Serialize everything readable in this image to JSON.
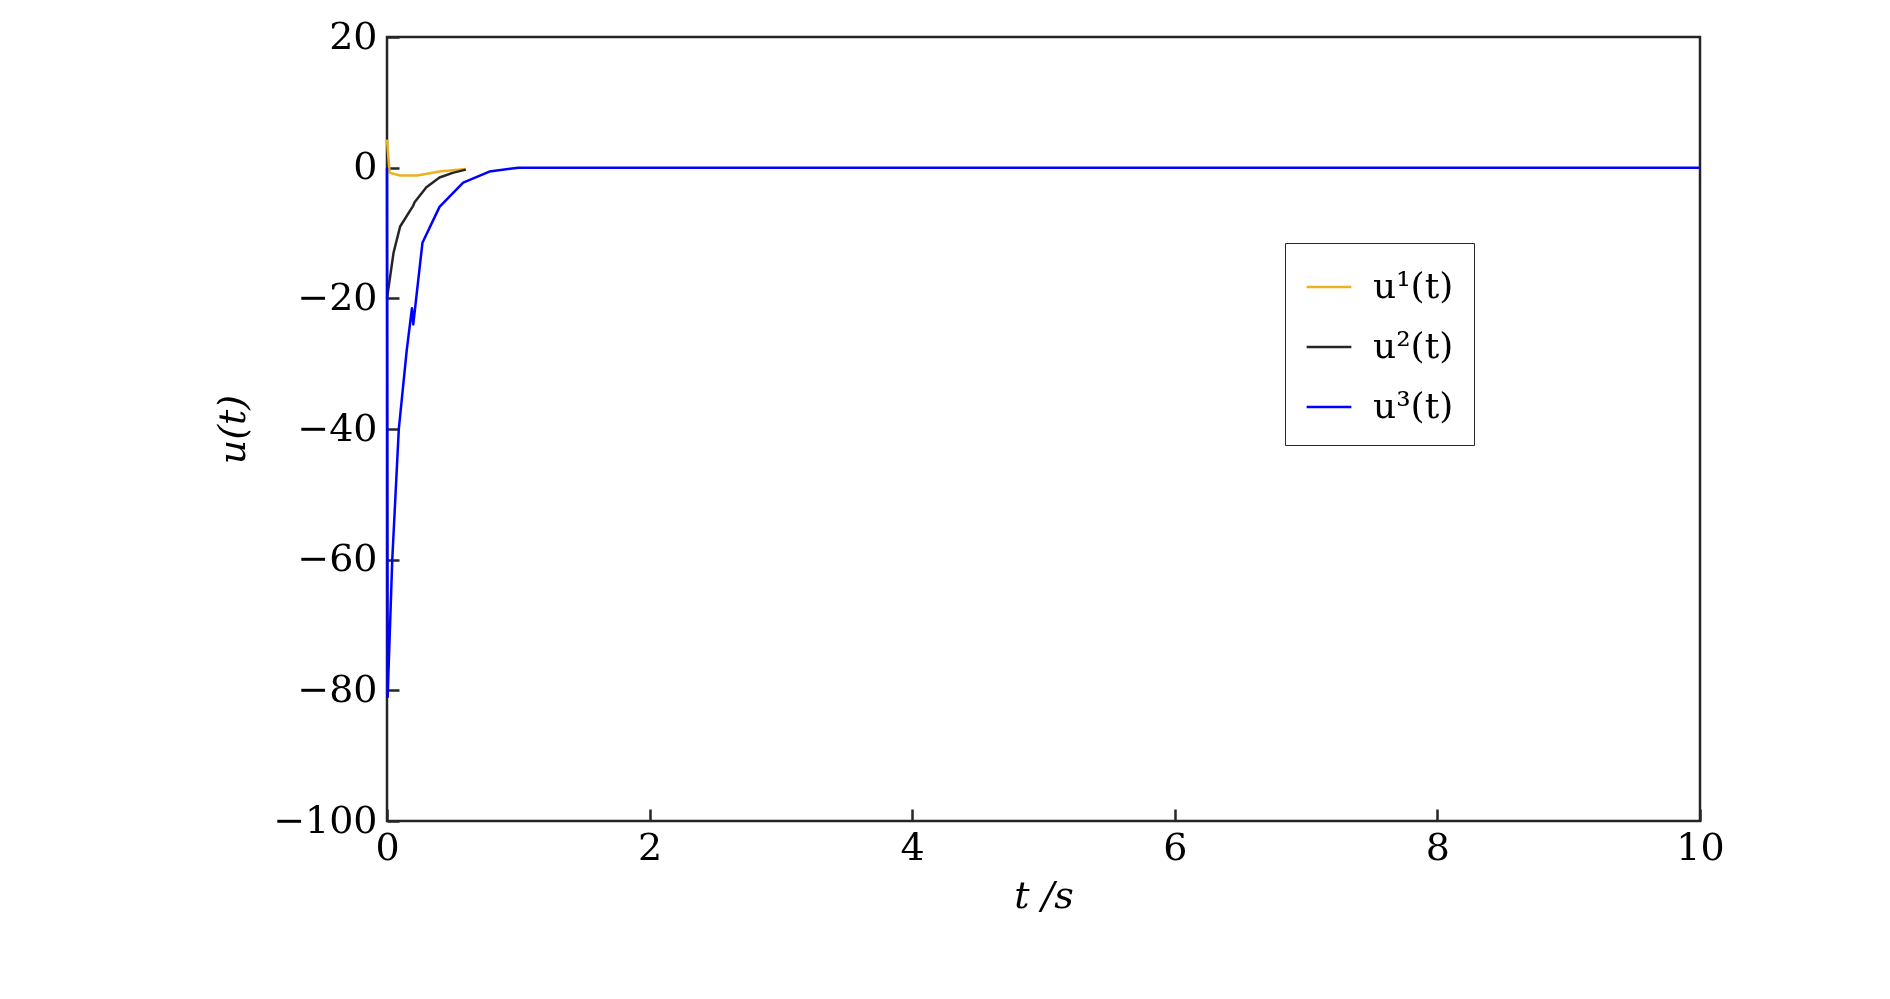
{
  "chart_data": {
    "type": "line",
    "xlabel": "t /s",
    "ylabel": "u(t)",
    "xlim": [
      0,
      10
    ],
    "xticks": [
      0,
      2,
      4,
      6,
      8,
      10
    ],
    "ylim": [
      -100,
      20
    ],
    "yticks": [
      -100,
      -80,
      -60,
      -40,
      -20,
      0,
      20
    ],
    "grid": false,
    "legend": "right",
    "line_style": "solid",
    "marker": "none",
    "series": [
      {
        "name": "u¹(t)",
        "color": "#edb120",
        "x": [
          0,
          0.02,
          0.1,
          0.23,
          0.4,
          0.6
        ],
        "values": [
          4.3,
          -0.8,
          -1.2,
          -1.2,
          -0.6,
          -0.2
        ]
      },
      {
        "name": "u²(t)",
        "color": "#262626",
        "x": [
          0,
          0.05,
          0.1,
          0.2,
          0.21,
          0.3,
          0.4,
          0.5,
          0.6
        ],
        "values": [
          -20,
          -13,
          -9,
          -5.8,
          -5.3,
          -3,
          -1.5,
          -0.8,
          -0.3
        ]
      },
      {
        "name": "u³(t)",
        "color": "#0000ff",
        "x": [
          0,
          0.005,
          0.01,
          0.04,
          0.09,
          0.15,
          0.19,
          0.2,
          0.27,
          0.4,
          0.58,
          0.78,
          1,
          10
        ],
        "values": [
          0,
          -81,
          -78,
          -60,
          -40,
          -28,
          -21.5,
          -24,
          -11.5,
          -6,
          -2.3,
          -0.6,
          0,
          0
        ]
      }
    ]
  }
}
